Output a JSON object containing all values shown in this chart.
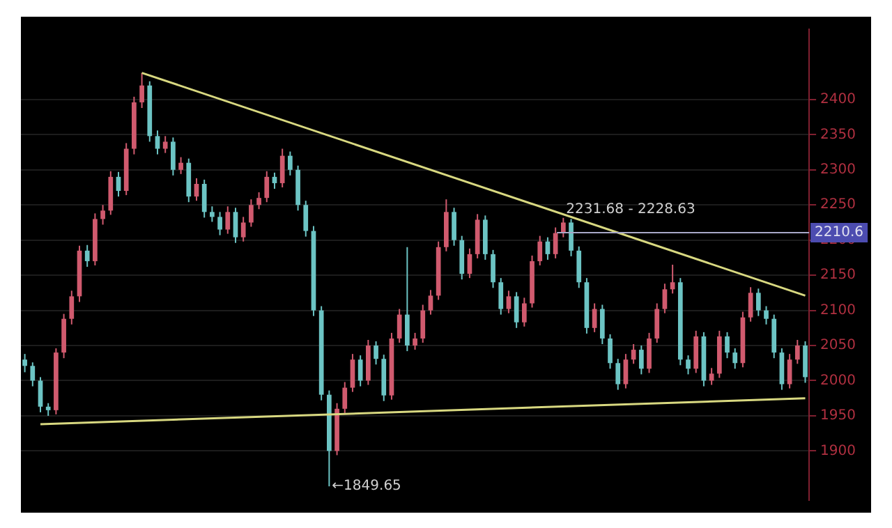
{
  "chart_data": {
    "type": "candlestick",
    "categories": [
      null,
      null,
      null,
      null,
      null,
      null,
      null,
      null,
      null,
      null,
      null,
      null,
      null,
      null,
      null,
      null,
      null,
      null,
      null,
      null,
      null,
      null,
      null,
      null,
      null,
      null,
      null,
      null,
      null,
      null,
      null,
      null,
      null,
      null,
      null,
      null,
      null,
      null,
      null,
      null,
      null,
      null,
      null,
      null,
      null,
      null,
      null,
      null,
      null,
      null,
      null,
      null,
      null,
      null,
      null,
      null,
      null,
      null,
      null,
      null,
      null,
      null,
      null,
      null,
      null,
      null,
      null,
      null,
      null,
      null,
      null,
      null,
      null,
      null,
      null,
      null,
      null,
      null,
      null,
      null,
      null,
      null,
      null,
      null,
      null,
      null,
      null,
      null,
      null,
      null,
      null,
      null,
      null,
      null,
      null,
      null,
      null,
      null,
      null,
      null,
      null
    ],
    "ohlc": [
      [
        2030,
        2038,
        2012,
        2021
      ],
      [
        2021,
        2026,
        1992,
        2000
      ],
      [
        2000,
        2005,
        1955,
        1963
      ],
      [
        1963,
        1968,
        1950,
        1958
      ],
      [
        1958,
        2046,
        1952,
        2040
      ],
      [
        2040,
        2095,
        2032,
        2088
      ],
      [
        2088,
        2128,
        2080,
        2120
      ],
      [
        2120,
        2192,
        2112,
        2185
      ],
      [
        2185,
        2193,
        2162,
        2170
      ],
      [
        2170,
        2238,
        2164,
        2230
      ],
      [
        2230,
        2250,
        2222,
        2242
      ],
      [
        2242,
        2298,
        2236,
        2290
      ],
      [
        2290,
        2297,
        2262,
        2270
      ],
      [
        2270,
        2338,
        2264,
        2330
      ],
      [
        2330,
        2404,
        2322,
        2396
      ],
      [
        2396,
        2438,
        2388,
        2420
      ],
      [
        2420,
        2426,
        2340,
        2348
      ],
      [
        2348,
        2356,
        2322,
        2330
      ],
      [
        2330,
        2348,
        2324,
        2340
      ],
      [
        2340,
        2346,
        2292,
        2300
      ],
      [
        2300,
        2318,
        2294,
        2310
      ],
      [
        2310,
        2316,
        2254,
        2262
      ],
      [
        2262,
        2288,
        2256,
        2280
      ],
      [
        2280,
        2286,
        2232,
        2240
      ],
      [
        2240,
        2248,
        2226,
        2233
      ],
      [
        2233,
        2240,
        2207,
        2215
      ],
      [
        2215,
        2248,
        2209,
        2240
      ],
      [
        2240,
        2246,
        2196,
        2204
      ],
      [
        2204,
        2233,
        2198,
        2225
      ],
      [
        2225,
        2258,
        2219,
        2250
      ],
      [
        2250,
        2268,
        2244,
        2260
      ],
      [
        2260,
        2298,
        2254,
        2290
      ],
      [
        2290,
        2296,
        2273,
        2281
      ],
      [
        2281,
        2330,
        2275,
        2320
      ],
      [
        2320,
        2326,
        2292,
        2300
      ],
      [
        2300,
        2306,
        2242,
        2250
      ],
      [
        2250,
        2256,
        2205,
        2213
      ],
      [
        2213,
        2220,
        2092,
        2100
      ],
      [
        2100,
        2106,
        1972,
        1980
      ],
      [
        1980,
        1986,
        1849.65,
        1900
      ],
      [
        1900,
        1968,
        1894,
        1960
      ],
      [
        1960,
        1998,
        1954,
        1990
      ],
      [
        1990,
        2038,
        1984,
        2030
      ],
      [
        2030,
        2036,
        1992,
        2000
      ],
      [
        2000,
        2058,
        1994,
        2050
      ],
      [
        2050,
        2056,
        2023,
        2031
      ],
      [
        2031,
        2037,
        1971,
        1979
      ],
      [
        1979,
        2068,
        1973,
        2060
      ],
      [
        2060,
        2102,
        2054,
        2094
      ],
      [
        2094,
        2190,
        2042,
        2050
      ],
      [
        2050,
        2068,
        2044,
        2060
      ],
      [
        2060,
        2108,
        2054,
        2100
      ],
      [
        2100,
        2129,
        2094,
        2121
      ],
      [
        2121,
        2198,
        2115,
        2190
      ],
      [
        2190,
        2258,
        2184,
        2240
      ],
      [
        2240,
        2246,
        2192,
        2200
      ],
      [
        2200,
        2206,
        2144,
        2152
      ],
      [
        2152,
        2188,
        2146,
        2180
      ],
      [
        2180,
        2237,
        2174,
        2229
      ],
      [
        2229,
        2235,
        2172,
        2180
      ],
      [
        2180,
        2186,
        2132,
        2140
      ],
      [
        2140,
        2146,
        2094,
        2102
      ],
      [
        2102,
        2128,
        2096,
        2120
      ],
      [
        2120,
        2126,
        2075,
        2083
      ],
      [
        2083,
        2118,
        2077,
        2110
      ],
      [
        2110,
        2178,
        2104,
        2170
      ],
      [
        2170,
        2206,
        2164,
        2198
      ],
      [
        2198,
        2204,
        2172,
        2180
      ],
      [
        2180,
        2218,
        2174,
        2210
      ],
      [
        2210,
        2231.68,
        2204,
        2225
      ],
      [
        2225,
        2230,
        2177,
        2185
      ],
      [
        2185,
        2191,
        2132,
        2140
      ],
      [
        2140,
        2146,
        2067,
        2075
      ],
      [
        2075,
        2110,
        2069,
        2102
      ],
      [
        2102,
        2108,
        2052,
        2060
      ],
      [
        2060,
        2066,
        2017,
        2025
      ],
      [
        2025,
        2031,
        1987,
        1995
      ],
      [
        1995,
        2038,
        1989,
        2030
      ],
      [
        2030,
        2052,
        2024,
        2044
      ],
      [
        2044,
        2050,
        2009,
        2017
      ],
      [
        2017,
        2068,
        2011,
        2060
      ],
      [
        2060,
        2110,
        2054,
        2102
      ],
      [
        2102,
        2138,
        2096,
        2130
      ],
      [
        2130,
        2165,
        2124,
        2140
      ],
      [
        2140,
        2146,
        2022,
        2030
      ],
      [
        2030,
        2036,
        2009,
        2017
      ],
      [
        2017,
        2071,
        2011,
        2063
      ],
      [
        2063,
        2069,
        1992,
        2000
      ],
      [
        2000,
        2018,
        1994,
        2010
      ],
      [
        2010,
        2071,
        2004,
        2063
      ],
      [
        2063,
        2069,
        2032,
        2040
      ],
      [
        2040,
        2046,
        2017,
        2025
      ],
      [
        2025,
        2098,
        2019,
        2090
      ],
      [
        2090,
        2133,
        2084,
        2125
      ],
      [
        2125,
        2131,
        2092,
        2100
      ],
      [
        2100,
        2106,
        2080,
        2088
      ],
      [
        2088,
        2094,
        2032,
        2040
      ],
      [
        2040,
        2046,
        1987,
        1995
      ],
      [
        1995,
        2038,
        1989,
        2030
      ],
      [
        2030,
        2058,
        2024,
        2050
      ],
      [
        2050,
        2056,
        1997,
        2005
      ]
    ],
    "colors": [
      "#6cc4c4",
      "#6cc4c4",
      "#6cc4c4",
      "#6cc4c4",
      "#d05a6e",
      "#d05a6e",
      "#d05a6e",
      "#d05a6e",
      "#6cc4c4",
      "#d05a6e",
      "#d05a6e",
      "#d05a6e",
      "#6cc4c4",
      "#d05a6e",
      "#d05a6e",
      "#d05a6e",
      "#6cc4c4",
      "#6cc4c4",
      "#d05a6e",
      "#6cc4c4",
      "#d05a6e",
      "#6cc4c4",
      "#d05a6e",
      "#6cc4c4",
      "#6cc4c4",
      "#6cc4c4",
      "#d05a6e",
      "#6cc4c4",
      "#d05a6e",
      "#d05a6e",
      "#d05a6e",
      "#d05a6e",
      "#6cc4c4",
      "#d05a6e",
      "#6cc4c4",
      "#6cc4c4",
      "#6cc4c4",
      "#6cc4c4",
      "#6cc4c4",
      "#6cc4c4",
      "#d05a6e",
      "#d05a6e",
      "#d05a6e",
      "#6cc4c4",
      "#d05a6e",
      "#6cc4c4",
      "#6cc4c4",
      "#d05a6e",
      "#d05a6e",
      "#6cc4c4",
      "#d05a6e",
      "#d05a6e",
      "#d05a6e",
      "#d05a6e",
      "#d05a6e",
      "#6cc4c4",
      "#6cc4c4",
      "#d05a6e",
      "#d05a6e",
      "#6cc4c4",
      "#6cc4c4",
      "#6cc4c4",
      "#d05a6e",
      "#6cc4c4",
      "#d05a6e",
      "#d05a6e",
      "#d05a6e",
      "#6cc4c4",
      "#d05a6e",
      "#d05a6e",
      "#6cc4c4",
      "#6cc4c4",
      "#6cc4c4",
      "#d05a6e",
      "#6cc4c4",
      "#6cc4c4",
      "#6cc4c4",
      "#d05a6e",
      "#d05a6e",
      "#6cc4c4",
      "#d05a6e",
      "#d05a6e",
      "#d05a6e",
      "#d05a6e",
      "#6cc4c4",
      "#6cc4c4",
      "#d05a6e",
      "#6cc4c4",
      "#d05a6e",
      "#d05a6e",
      "#6cc4c4",
      "#6cc4c4",
      "#d05a6e",
      "#d05a6e",
      "#6cc4c4",
      "#6cc4c4",
      "#6cc4c4",
      "#6cc4c4",
      "#d05a6e",
      "#d05a6e",
      "#6cc4c4"
    ],
    "series": [
      {
        "type": "line",
        "color": "#d8d880",
        "values": [
          null,
          null,
          null,
          null,
          null,
          null,
          null,
          null,
          null,
          null,
          null,
          null,
          null,
          null,
          null,
          2438,
          null,
          null,
          null,
          null,
          null,
          null,
          null,
          null,
          null,
          null,
          null,
          null,
          null,
          null,
          null,
          null,
          null,
          null,
          null,
          null,
          null,
          null,
          null,
          null,
          null,
          null,
          null,
          null,
          null,
          null,
          null,
          null,
          null,
          null,
          null,
          null,
          null,
          null,
          null,
          null,
          null,
          null,
          null,
          null,
          null,
          null,
          null,
          null,
          null,
          null,
          null,
          null,
          null,
          null,
          null,
          null,
          null,
          null,
          null,
          null,
          null,
          null,
          null,
          null,
          null,
          null,
          null,
          null,
          null,
          null,
          null,
          null,
          null,
          null,
          null,
          null,
          null,
          null,
          null,
          null,
          null,
          null,
          null,
          null,
          2121
        ]
      },
      {
        "type": "line",
        "color": "#d8d880",
        "values": [
          null,
          null,
          1938,
          null,
          null,
          null,
          null,
          null,
          null,
          null,
          null,
          null,
          null,
          null,
          null,
          null,
          null,
          null,
          null,
          null,
          null,
          null,
          null,
          null,
          null,
          null,
          null,
          null,
          null,
          null,
          null,
          null,
          null,
          null,
          null,
          null,
          null,
          null,
          null,
          null,
          null,
          null,
          null,
          null,
          null,
          null,
          null,
          null,
          null,
          null,
          null,
          null,
          null,
          null,
          null,
          null,
          null,
          null,
          null,
          null,
          null,
          null,
          null,
          null,
          null,
          null,
          null,
          null,
          null,
          null,
          null,
          null,
          null,
          null,
          null,
          null,
          null,
          null,
          null,
          null,
          null,
          null,
          null,
          null,
          null,
          null,
          null,
          null,
          null,
          null,
          null,
          null,
          null,
          null,
          null,
          null,
          null,
          null,
          null,
          null,
          1975
        ]
      }
    ],
    "ylim": [
      1830,
      2500
    ],
    "yticks": [
      1900,
      1950,
      2000,
      2050,
      2100,
      2150,
      2200,
      2250,
      2300,
      2350,
      2400
    ],
    "ref_lines": [
      {
        "axis": "y",
        "value": 2210.6,
        "label": "2210.6",
        "color": "#a8a8c8"
      }
    ],
    "annotations": [
      "2231.68 - 2228.63",
      "←1849.65"
    ],
    "grid": "y",
    "tick_labels": "y"
  }
}
